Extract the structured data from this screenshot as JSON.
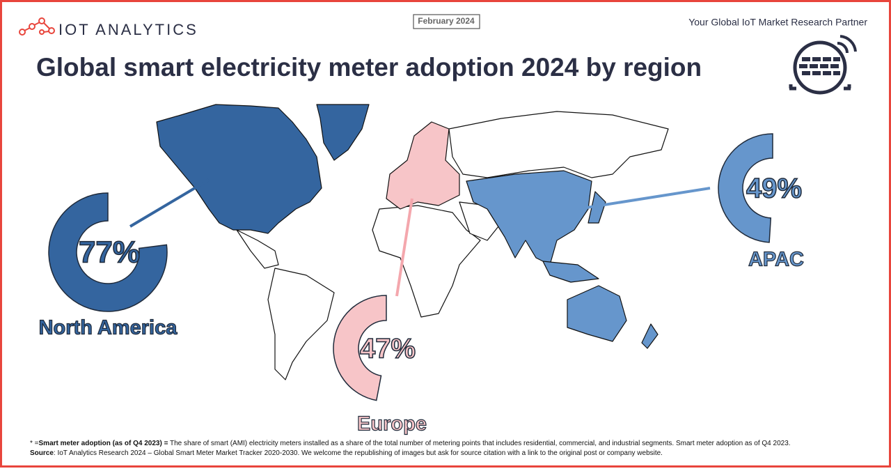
{
  "header": {
    "logo": "IOT ANALYTICS",
    "date": "February 2024",
    "tagline": "Your Global IoT Market Research Partner"
  },
  "chart_data": {
    "type": "donut",
    "title": "Global smart electricity meter adoption 2024 by region",
    "categories": [
      "North America",
      "Europe",
      "APAC"
    ],
    "values": [
      77,
      47,
      49
    ],
    "value_labels": [
      "77%",
      "47%",
      "49%"
    ],
    "colors": [
      "#34659f",
      "#f7c5c8",
      "#6696cc"
    ]
  },
  "footnote": {
    "line1_prefix": "* =",
    "line1_bold": "Smart meter adoption (as of Q4 2023) =",
    "line1_text": " The share of smart (AMI) electricity meters installed as a share of the total number of metering points that includes residential, commercial, and industrial segments.  Smart meter adoption as of Q4 2023.",
    "line2_bold": "Source",
    "line2_text": ": IoT Analytics Research 2024 – Global Smart Meter Market Tracker 2020-2030. We welcome the republishing of images but ask for source citation with a link to the original post or company website."
  }
}
